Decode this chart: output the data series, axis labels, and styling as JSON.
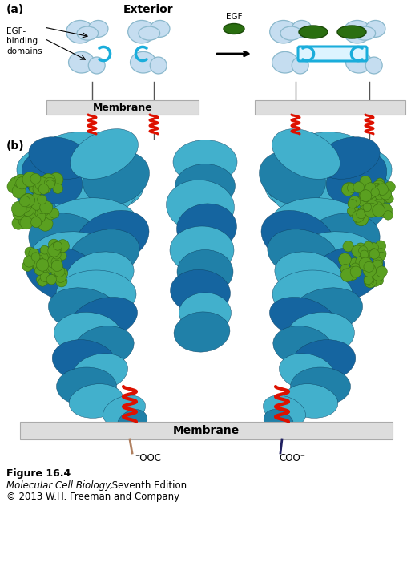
{
  "bg_color": "#ffffff",
  "receptor_color": "#c5ddf0",
  "receptor_edge": "#8ab8cc",
  "blue_bracket_color": "#1aaddb",
  "egf_dark_green": "#2a6e10",
  "egf_light_green": "#4a9a20",
  "membrane_color": "#dddddd",
  "membrane_edge": "#aaaaaa",
  "red_helix_color": "#dd1100",
  "prot_teal_light": "#4ab5ce",
  "prot_teal_dark": "#1565a0",
  "prot_blue_mid": "#2080a8",
  "green_sphere": "#5aa020",
  "green_sphere_dark": "#3a7010",
  "tan_helix": "#c8a070",
  "dark_navy": "#1a2050",
  "exterior_label": "Exterior",
  "egf_label": "EGF",
  "egf_binding_label": "EGF-\nbinding\ndomains",
  "membrane_label": "Membrane",
  "fig_label": "Figure 16.4",
  "fig_line2": "Molecular Cell Biology,",
  "fig_line2b": " Seventh Edition",
  "fig_line3": "© 2013 W.H. Freeman and Company",
  "ooc_label": "⁻OOC",
  "coo_label": "COO⁻"
}
